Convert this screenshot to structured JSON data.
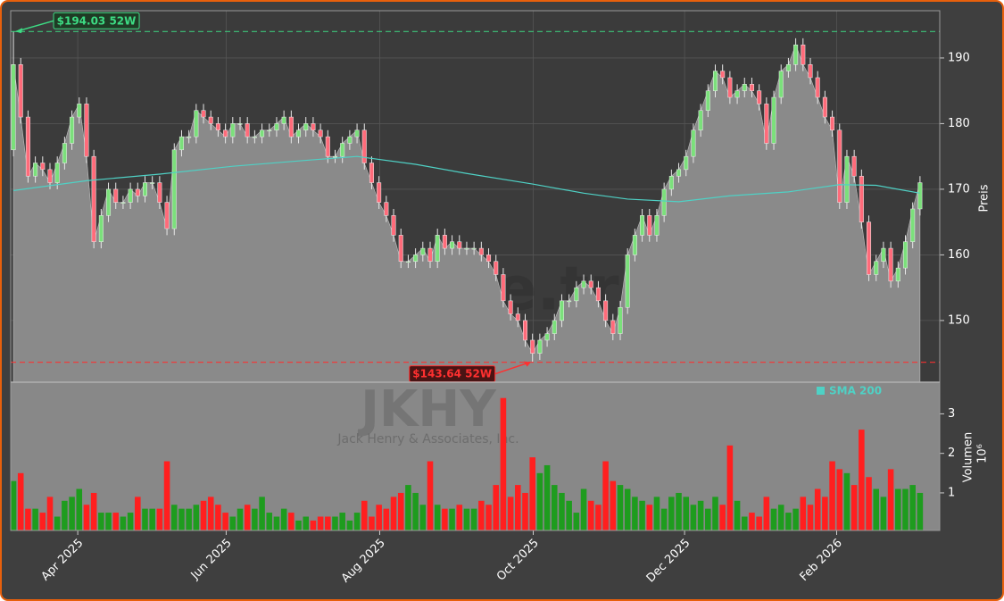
{
  "chart_data": {
    "type": "candlestick",
    "watermark": "forexsignale.trade",
    "ticker": "JKHY",
    "company": "Jack Henry & Associates, Inc.",
    "y_label": "Preis",
    "volume_label": "Volumen",
    "volume_scale": "10⁶",
    "up_color": "#1e9c1e",
    "down_color": "#ff1f1f",
    "grid": true,
    "xlim": [
      -0.37,
      126.7
    ],
    "xticks": [
      {
        "value": 8.8,
        "label": "Apr 2025"
      },
      {
        "value": 29.1,
        "label": "Jun 2025"
      },
      {
        "value": 50.1,
        "label": "Aug 2025"
      },
      {
        "value": 71.1,
        "label": "Oct 2025"
      },
      {
        "value": 91.8,
        "label": "Dec 2025"
      },
      {
        "value": 112.6,
        "label": "Feb 2026"
      }
    ],
    "ylim": [
      140.6,
      197.2
    ],
    "yticks": [
      150,
      160,
      170,
      180,
      190
    ],
    "volume_ylim": [
      0.05,
      3.8
    ],
    "volume_yticks": [
      1,
      2,
      3
    ],
    "open": [
      176,
      189,
      181,
      172,
      174,
      173,
      171,
      174,
      177,
      181,
      183,
      175,
      162,
      166,
      170,
      168,
      168,
      170,
      169,
      171,
      171,
      168,
      164,
      176,
      178,
      178,
      182,
      181,
      180,
      179,
      178,
      180,
      180,
      178,
      178,
      179,
      179,
      180,
      181,
      178,
      179,
      180,
      179,
      178,
      175,
      175,
      177,
      178,
      179,
      174,
      171,
      168,
      166,
      163,
      159,
      159,
      160,
      161,
      159,
      163,
      161,
      162,
      161,
      161,
      161,
      160,
      159,
      157,
      153,
      151,
      150,
      147,
      145,
      147,
      148,
      150,
      153,
      153,
      155,
      156,
      155,
      153,
      150,
      148,
      152,
      160,
      163,
      166,
      163,
      166,
      170,
      172,
      173,
      175,
      179,
      182,
      185,
      188,
      187,
      184,
      185,
      186,
      185,
      183,
      177,
      184,
      188,
      189,
      192,
      189,
      187,
      184,
      181,
      179,
      168,
      175,
      172,
      165,
      157,
      159,
      161,
      156,
      158,
      162,
      167
    ],
    "high": [
      194.03,
      190,
      182,
      175,
      175,
      174,
      175,
      178,
      182,
      184,
      184,
      176,
      167,
      171,
      171,
      169,
      171,
      171,
      172,
      172,
      172,
      169,
      177,
      179,
      179,
      183,
      183,
      182,
      181,
      180,
      181,
      181,
      181,
      179,
      180,
      180,
      181,
      182,
      182,
      180,
      181,
      181,
      180,
      179,
      176,
      178,
      179,
      180,
      180,
      175,
      172,
      169,
      167,
      164,
      160,
      161,
      162,
      162,
      164,
      164,
      163,
      163,
      162,
      162,
      162,
      161,
      160,
      158,
      154,
      152,
      151,
      148,
      148,
      149,
      151,
      154,
      154,
      156,
      157,
      157,
      156,
      154,
      151,
      153,
      161,
      164,
      167,
      167,
      167,
      171,
      173,
      174,
      176,
      180,
      183,
      186,
      189,
      189,
      188,
      186,
      187,
      187,
      186,
      184,
      185,
      189,
      190,
      193,
      193,
      190,
      188,
      185,
      182,
      180,
      176,
      176,
      173,
      166,
      160,
      162,
      162,
      159,
      163,
      168,
      172
    ],
    "low": [
      175,
      180,
      171,
      171,
      172,
      170,
      170,
      173,
      176,
      180,
      174,
      161,
      161,
      165,
      167,
      167,
      167,
      168,
      168,
      170,
      167,
      163,
      163,
      175,
      177,
      177,
      180,
      179,
      178,
      177,
      177,
      179,
      177,
      177,
      177,
      178,
      178,
      179,
      177,
      177,
      178,
      178,
      177,
      174,
      174,
      174,
      176,
      177,
      173,
      170,
      167,
      165,
      162,
      158,
      158,
      158,
      159,
      158,
      158,
      160,
      160,
      160,
      160,
      160,
      159,
      158,
      156,
      152,
      150,
      149,
      146,
      143.64,
      144,
      146,
      147,
      149,
      152,
      152,
      154,
      154,
      152,
      149,
      147,
      147,
      151,
      159,
      162,
      162,
      162,
      165,
      169,
      171,
      172,
      174,
      178,
      181,
      184,
      186,
      183,
      183,
      184,
      184,
      182,
      176,
      176,
      183,
      187,
      188,
      188,
      186,
      183,
      180,
      178,
      167,
      167,
      171,
      164,
      156,
      156,
      158,
      155,
      155,
      157,
      161,
      166
    ],
    "close": [
      189,
      181,
      172,
      174,
      173,
      171,
      174,
      177,
      181,
      183,
      175,
      162,
      166,
      170,
      168,
      168,
      170,
      169,
      171,
      171,
      168,
      164,
      176,
      178,
      178,
      182,
      181,
      180,
      179,
      178,
      180,
      180,
      178,
      178,
      179,
      179,
      180,
      181,
      178,
      179,
      180,
      179,
      178,
      175,
      175,
      177,
      178,
      179,
      174,
      171,
      168,
      166,
      163,
      159,
      159,
      160,
      161,
      159,
      163,
      161,
      162,
      161,
      161,
      161,
      160,
      159,
      157,
      153,
      151,
      150,
      147,
      145,
      147,
      148,
      150,
      153,
      153,
      155,
      156,
      155,
      153,
      150,
      148,
      152,
      160,
      163,
      166,
      163,
      166,
      170,
      172,
      173,
      175,
      179,
      182,
      185,
      188,
      187,
      184,
      185,
      186,
      185,
      183,
      177,
      184,
      188,
      189,
      192,
      189,
      187,
      184,
      181,
      179,
      168,
      175,
      172,
      165,
      157,
      159,
      161,
      156,
      158,
      162,
      167,
      171
    ],
    "volume": [
      1.3,
      1.5,
      0.6,
      0.6,
      0.5,
      0.9,
      0.4,
      0.8,
      0.9,
      1.1,
      0.7,
      1.0,
      0.5,
      0.5,
      0.5,
      0.4,
      0.5,
      0.9,
      0.6,
      0.6,
      0.6,
      1.8,
      0.7,
      0.6,
      0.6,
      0.7,
      0.8,
      0.9,
      0.7,
      0.5,
      0.4,
      0.6,
      0.7,
      0.6,
      0.9,
      0.5,
      0.4,
      0.6,
      0.5,
      0.3,
      0.4,
      0.3,
      0.4,
      0.4,
      0.4,
      0.5,
      0.3,
      0.5,
      0.8,
      0.4,
      0.7,
      0.6,
      0.9,
      1.0,
      1.2,
      1.0,
      0.7,
      1.8,
      0.7,
      0.6,
      0.6,
      0.7,
      0.6,
      0.6,
      0.8,
      0.7,
      1.2,
      3.4,
      0.9,
      1.2,
      1.0,
      1.9,
      1.5,
      1.7,
      1.2,
      1.0,
      0.8,
      0.5,
      1.1,
      0.8,
      0.7,
      1.8,
      1.3,
      1.2,
      1.1,
      0.9,
      0.8,
      0.7,
      0.9,
      0.6,
      0.9,
      1.0,
      0.9,
      0.7,
      0.8,
      0.6,
      0.9,
      0.7,
      2.2,
      0.8,
      0.4,
      0.5,
      0.4,
      0.9,
      0.6,
      0.7,
      0.5,
      0.6,
      0.9,
      0.7,
      1.1,
      0.9,
      1.8,
      1.6,
      1.5,
      1.2,
      2.6,
      1.4,
      1.1,
      0.9,
      1.6,
      1.1,
      1.1,
      1.2,
      1.0
    ],
    "sma": {
      "name": "SMA 200",
      "color": "#4fd1c5",
      "x": [
        0,
        10,
        20,
        30,
        40,
        47,
        55,
        62,
        71,
        78,
        84,
        91,
        98,
        106,
        113,
        118,
        124
      ],
      "values": [
        169.8,
        171.3,
        172.3,
        173.5,
        174.4,
        175.0,
        173.8,
        172.4,
        170.8,
        169.4,
        168.5,
        168.1,
        169.0,
        169.6,
        170.7,
        170.6,
        169.4
      ]
    },
    "high_52w": {
      "value": 194.03,
      "label": "$194.03 52W",
      "color": "#3ddc84"
    },
    "low_52w": {
      "value": 143.64,
      "label": "$143.64 52W",
      "color": "#ff3030"
    }
  }
}
